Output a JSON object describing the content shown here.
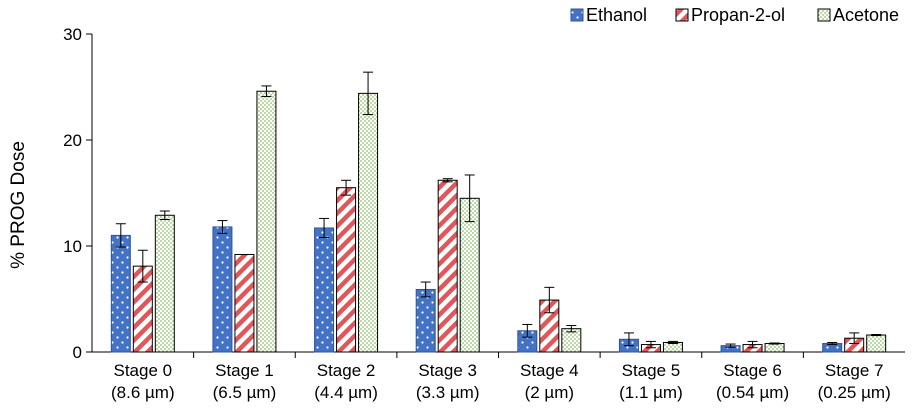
{
  "chart_data": {
    "type": "bar",
    "title": "",
    "xlabel": "",
    "ylabel": "% PROG Dose",
    "ylim": [
      0,
      30
    ],
    "yticks": [
      0,
      10,
      20,
      30
    ],
    "grid": false,
    "legend_position": "top-right",
    "categories": [
      [
        "Stage 0",
        "(8.6 µm)"
      ],
      [
        "Stage 1",
        "(6.5 µm)"
      ],
      [
        "Stage 2",
        "(4.4 µm)"
      ],
      [
        "Stage 3",
        "(3.3 µm)"
      ],
      [
        "Stage 4",
        "(2 µm)"
      ],
      [
        "Stage 5",
        "(1.1 µm)"
      ],
      [
        "Stage 6",
        "(0.54 µm)"
      ],
      [
        "Stage 7",
        "(0.25 µm)"
      ]
    ],
    "series": [
      {
        "name": "Ethanol",
        "color": "#4472C4",
        "pattern": "dots",
        "values": [
          11.0,
          11.8,
          11.7,
          5.9,
          2.0,
          1.2,
          0.6,
          0.8
        ],
        "errors": [
          1.1,
          0.6,
          0.9,
          0.7,
          0.6,
          0.6,
          0.15,
          0.1
        ]
      },
      {
        "name": "Propan-2-ol",
        "color": "#E15759",
        "pattern": "diagonal-stripes",
        "values": [
          8.1,
          9.2,
          15.5,
          16.2,
          4.9,
          0.7,
          0.7,
          1.3
        ],
        "errors": [
          1.5,
          0.0,
          0.7,
          0.15,
          1.2,
          0.3,
          0.3,
          0.5
        ]
      },
      {
        "name": "Acetone",
        "color": "#A9D18E",
        "pattern": "fine-dots",
        "values": [
          12.9,
          24.6,
          24.4,
          14.5,
          2.2,
          0.9,
          0.8,
          1.6
        ],
        "errors": [
          0.4,
          0.5,
          2.0,
          2.2,
          0.3,
          0.1,
          0.05,
          0.05
        ]
      }
    ]
  }
}
